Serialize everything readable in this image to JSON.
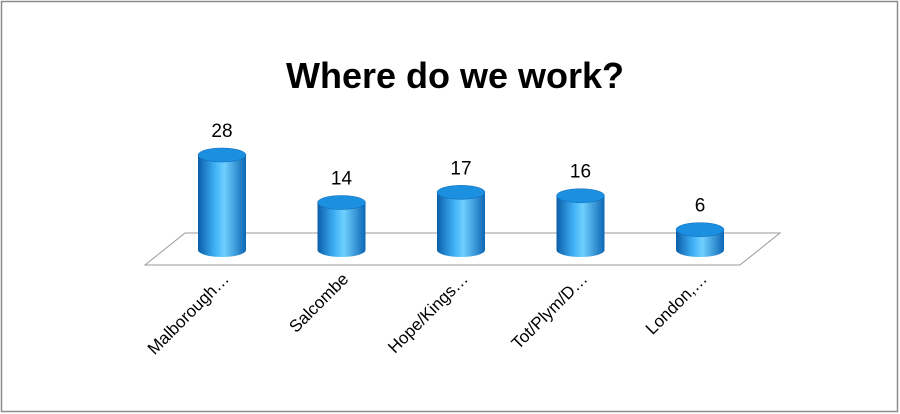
{
  "chart_data": {
    "type": "bar3d",
    "title": "Where do we work?",
    "categories": [
      "Malborough…",
      "Salcombe",
      "Hope/Kings…",
      "Tot/Plym/D…",
      "London,…"
    ],
    "values": [
      28,
      14,
      17,
      16,
      6
    ],
    "color": "#1b8fe0"
  }
}
